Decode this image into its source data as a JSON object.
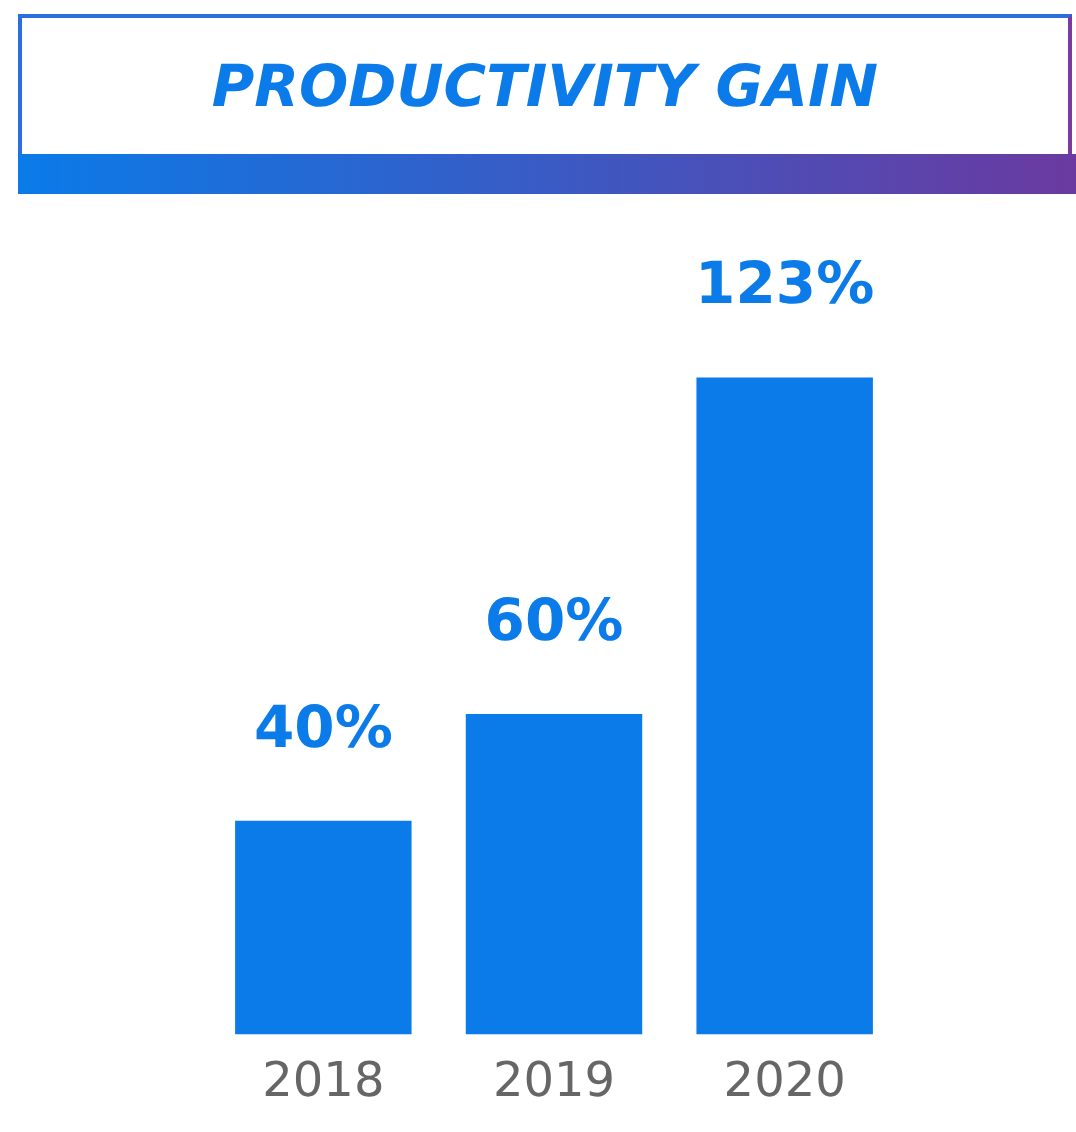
{
  "chart_data": {
    "type": "bar",
    "title": "PRODUCTIVITY GAIN",
    "categories": [
      "2018",
      "2019",
      "2020"
    ],
    "values": [
      40,
      60,
      123
    ],
    "color": "#0a7be8",
    "value_labels": [
      "40%",
      "60%",
      "123%"
    ],
    "grid": false,
    "legend": false,
    "tick_labels": "x"
  }
}
